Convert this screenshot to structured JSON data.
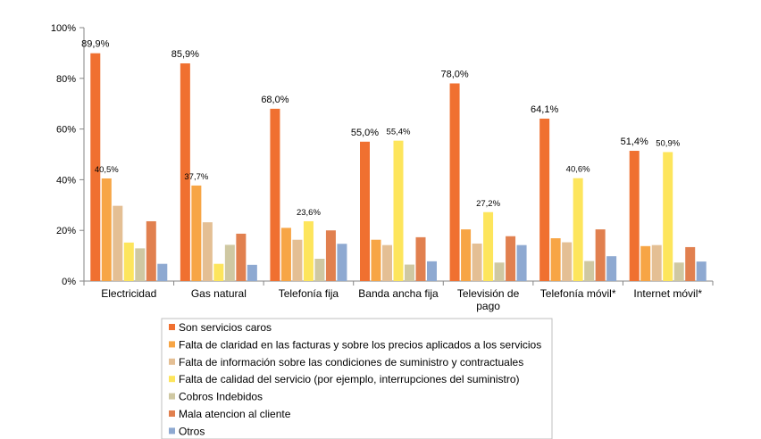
{
  "chart_data": {
    "type": "bar",
    "title": "",
    "xlabel": "",
    "ylabel": "",
    "ylim": [
      0,
      100
    ],
    "yticks": [
      0,
      20,
      40,
      60,
      80,
      100
    ],
    "ytick_labels": [
      "0%",
      "20%",
      "40%",
      "60%",
      "80%",
      "100%"
    ],
    "grid": false,
    "legend_position": "bottom",
    "categories": [
      [
        "Electricidad"
      ],
      [
        "Gas natural"
      ],
      [
        "Telefonía fija"
      ],
      [
        "Banda ancha fija"
      ],
      [
        "Televisión de",
        "pago"
      ],
      [
        "Telefonía móvil*"
      ],
      [
        "Internet móvil*"
      ]
    ],
    "series": [
      {
        "name": "Son servicios caros",
        "color": "#f07030",
        "values": [
          89.9,
          85.9,
          68.0,
          55.0,
          78.0,
          64.1,
          51.4
        ]
      },
      {
        "name": "Falta de claridad en las facturas y sobre los precios aplicados a los servicios",
        "color": "#f7a545",
        "values": [
          40.5,
          37.7,
          21.0,
          16.3,
          20.4,
          16.9,
          13.8
        ]
      },
      {
        "name": "Falta de información sobre las condiciones de suministro y contractuales",
        "color": "#e4bf94",
        "values": [
          29.7,
          23.2,
          16.3,
          14.2,
          14.8,
          15.3,
          14.2
        ]
      },
      {
        "name": "Falta de calidad del servicio (por ejemplo, interrupciones del suministro)",
        "color": "#fde55c",
        "values": [
          15.2,
          6.8,
          23.6,
          55.4,
          27.2,
          40.6,
          50.9
        ]
      },
      {
        "name": "Cobros Indebidos",
        "color": "#cfc8a2",
        "values": [
          12.9,
          14.3,
          8.8,
          6.5,
          7.3,
          7.9,
          7.3
        ]
      },
      {
        "name": "Mala atencion al cliente",
        "color": "#e1804f",
        "values": [
          23.6,
          18.7,
          20.0,
          17.3,
          17.7,
          20.4,
          13.4
        ]
      },
      {
        "name": "Otros",
        "color": "#8ea9d1",
        "values": [
          6.8,
          6.4,
          14.7,
          7.8,
          14.2,
          9.8,
          7.7
        ]
      }
    ],
    "data_labels": [
      {
        "category": 0,
        "series": 0,
        "text": "89,9%"
      },
      {
        "category": 0,
        "series": 1,
        "text": "40,5%"
      },
      {
        "category": 1,
        "series": 0,
        "text": "85,9%"
      },
      {
        "category": 1,
        "series": 1,
        "text": "37,7%"
      },
      {
        "category": 2,
        "series": 0,
        "text": "68,0%"
      },
      {
        "category": 2,
        "series": 3,
        "text": "23,6%"
      },
      {
        "category": 3,
        "series": 0,
        "text": "55,0%"
      },
      {
        "category": 3,
        "series": 3,
        "text": "55,4%"
      },
      {
        "category": 4,
        "series": 0,
        "text": "78,0%"
      },
      {
        "category": 4,
        "series": 3,
        "text": "27,2%"
      },
      {
        "category": 5,
        "series": 0,
        "text": "64,1%"
      },
      {
        "category": 5,
        "series": 3,
        "text": "40,6%"
      },
      {
        "category": 6,
        "series": 0,
        "text": "51,4%"
      },
      {
        "category": 6,
        "series": 3,
        "text": "50,9%"
      }
    ]
  }
}
